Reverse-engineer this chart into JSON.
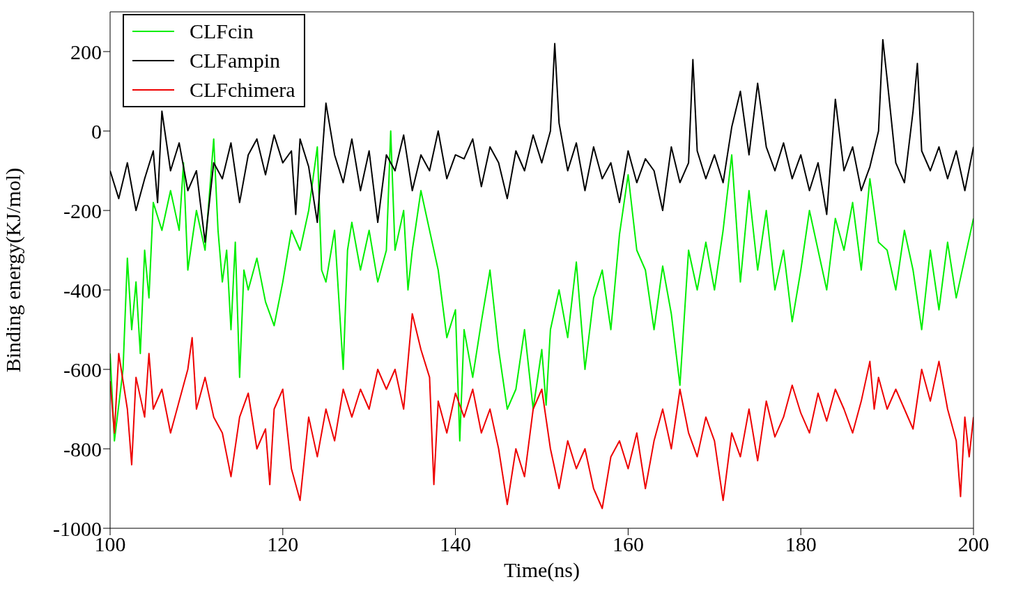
{
  "chart_data": {
    "type": "line",
    "xlabel": "Time(ns)",
    "ylabel": "Binding energy(KJ/mol)",
    "xlim": [
      100,
      200
    ],
    "xticks": [
      100,
      120,
      140,
      160,
      180,
      200
    ],
    "ylim": [
      -1000,
      300
    ],
    "yticks": [
      -1000,
      -800,
      -600,
      -400,
      -200,
      0,
      200
    ],
    "grid": false,
    "legend": "top left",
    "marker": "none",
    "line_style": "solid",
    "series": [
      {
        "name": "CLFcin",
        "color": "#00ee00",
        "x": [
          100,
          100.5,
          101.5,
          102,
          102.5,
          103,
          103.5,
          104,
          104.5,
          105,
          106,
          107,
          108,
          108.5,
          109,
          110,
          111,
          112,
          112.5,
          113,
          113.5,
          114,
          114.5,
          115,
          115.5,
          116,
          117,
          118,
          119,
          120,
          121,
          122,
          123,
          124,
          124.5,
          125,
          126,
          127,
          127.5,
          128,
          129,
          130,
          131,
          132,
          132.5,
          133,
          134,
          134.5,
          135,
          136,
          137,
          138,
          139,
          140,
          140.5,
          141,
          142,
          143,
          144,
          145,
          146,
          147,
          148,
          149,
          150,
          150.5,
          151,
          152,
          153,
          154,
          155,
          156,
          157,
          158,
          159,
          160,
          161,
          162,
          163,
          164,
          165,
          166,
          167,
          168,
          169,
          170,
          171,
          172,
          173,
          174,
          175,
          176,
          177,
          178,
          179,
          180,
          181,
          182,
          183,
          184,
          185,
          186,
          187,
          188,
          189,
          190,
          191,
          192,
          193,
          194,
          195,
          196,
          197,
          198,
          199,
          200
        ],
        "values": [
          -560,
          -780,
          -600,
          -320,
          -500,
          -380,
          -560,
          -300,
          -420,
          -180,
          -250,
          -150,
          -250,
          -80,
          -350,
          -200,
          -300,
          -20,
          -250,
          -380,
          -300,
          -500,
          -280,
          -620,
          -350,
          -400,
          -320,
          -430,
          -490,
          -380,
          -250,
          -300,
          -200,
          -40,
          -350,
          -380,
          -250,
          -600,
          -300,
          -230,
          -350,
          -250,
          -380,
          -300,
          0,
          -300,
          -200,
          -400,
          -300,
          -150,
          -250,
          -350,
          -520,
          -450,
          -780,
          -500,
          -620,
          -480,
          -350,
          -550,
          -700,
          -650,
          -500,
          -700,
          -550,
          -690,
          -500,
          -400,
          -520,
          -330,
          -600,
          -420,
          -350,
          -500,
          -260,
          -110,
          -300,
          -350,
          -500,
          -340,
          -460,
          -640,
          -300,
          -400,
          -280,
          -400,
          -250,
          -60,
          -380,
          -150,
          -350,
          -200,
          -400,
          -300,
          -480,
          -350,
          -200,
          -300,
          -400,
          -220,
          -300,
          -180,
          -350,
          -120,
          -280,
          -300,
          -400,
          -250,
          -350,
          -500,
          -300,
          -450,
          -280,
          -420,
          -320,
          -220
        ]
      },
      {
        "name": "CLFampin",
        "color": "#000000",
        "x": [
          100,
          101,
          102,
          103,
          104,
          105,
          105.5,
          106,
          107,
          108,
          109,
          110,
          111,
          112,
          113,
          114,
          115,
          116,
          117,
          118,
          119,
          120,
          121,
          121.5,
          122,
          123,
          124,
          125,
          126,
          127,
          128,
          129,
          130,
          131,
          132,
          133,
          134,
          135,
          136,
          137,
          138,
          139,
          140,
          141,
          142,
          143,
          144,
          145,
          146,
          147,
          148,
          149,
          150,
          151,
          151.5,
          152,
          153,
          154,
          155,
          156,
          157,
          158,
          159,
          160,
          161,
          162,
          163,
          164,
          165,
          166,
          167,
          167.5,
          168,
          169,
          170,
          171,
          172,
          173,
          174,
          175,
          176,
          177,
          178,
          179,
          180,
          181,
          182,
          183,
          184,
          185,
          186,
          187,
          188,
          189,
          189.5,
          190,
          191,
          192,
          193,
          193.5,
          194,
          195,
          196,
          197,
          198,
          199,
          200
        ],
        "values": [
          -100,
          -170,
          -80,
          -200,
          -120,
          -50,
          -180,
          50,
          -100,
          -30,
          -150,
          -100,
          -280,
          -80,
          -120,
          -30,
          -180,
          -60,
          -20,
          -110,
          -10,
          -80,
          -50,
          -210,
          -20,
          -90,
          -230,
          70,
          -60,
          -130,
          -20,
          -150,
          -50,
          -230,
          -60,
          -100,
          -10,
          -150,
          -60,
          -100,
          0,
          -120,
          -60,
          -70,
          -20,
          -140,
          -40,
          -80,
          -170,
          -50,
          -100,
          -10,
          -80,
          0,
          220,
          20,
          -100,
          -30,
          -150,
          -40,
          -120,
          -80,
          -180,
          -50,
          -130,
          -70,
          -100,
          -200,
          -40,
          -130,
          -80,
          180,
          -50,
          -120,
          -60,
          -130,
          10,
          100,
          -60,
          120,
          -40,
          -100,
          -30,
          -120,
          -60,
          -150,
          -80,
          -210,
          80,
          -100,
          -40,
          -150,
          -90,
          0,
          230,
          130,
          -80,
          -130,
          50,
          170,
          -50,
          -100,
          -40,
          -120,
          -50,
          -150,
          -40
        ]
      },
      {
        "name": "CLFchimera",
        "color": "#ee0000",
        "x": [
          100,
          100.5,
          101,
          102,
          102.5,
          103,
          104,
          104.5,
          105,
          106,
          107,
          108,
          109,
          109.5,
          110,
          111,
          112,
          113,
          114,
          115,
          116,
          117,
          118,
          118.5,
          119,
          120,
          121,
          122,
          123,
          124,
          125,
          126,
          127,
          128,
          129,
          130,
          131,
          132,
          133,
          134,
          135,
          136,
          137,
          137.5,
          138,
          139,
          140,
          141,
          142,
          143,
          144,
          145,
          146,
          147,
          148,
          149,
          150,
          151,
          152,
          153,
          154,
          155,
          156,
          157,
          158,
          159,
          160,
          161,
          162,
          163,
          164,
          165,
          166,
          167,
          168,
          169,
          170,
          171,
          172,
          173,
          174,
          175,
          176,
          177,
          178,
          179,
          180,
          181,
          182,
          183,
          184,
          185,
          186,
          187,
          188,
          188.5,
          189,
          190,
          191,
          192,
          193,
          194,
          195,
          196,
          197,
          198,
          198.5,
          199,
          199.5,
          200
        ],
        "values": [
          -630,
          -760,
          -560,
          -700,
          -840,
          -620,
          -720,
          -560,
          -700,
          -650,
          -760,
          -680,
          -600,
          -520,
          -700,
          -620,
          -720,
          -760,
          -870,
          -720,
          -660,
          -800,
          -750,
          -890,
          -700,
          -650,
          -850,
          -930,
          -720,
          -820,
          -700,
          -780,
          -650,
          -720,
          -650,
          -700,
          -600,
          -650,
          -600,
          -700,
          -460,
          -550,
          -620,
          -890,
          -680,
          -760,
          -660,
          -720,
          -650,
          -760,
          -700,
          -800,
          -940,
          -800,
          -870,
          -700,
          -650,
          -800,
          -900,
          -780,
          -850,
          -800,
          -900,
          -950,
          -820,
          -780,
          -850,
          -760,
          -900,
          -780,
          -700,
          -800,
          -650,
          -760,
          -820,
          -720,
          -780,
          -930,
          -760,
          -820,
          -700,
          -830,
          -680,
          -770,
          -720,
          -640,
          -710,
          -760,
          -660,
          -730,
          -650,
          -700,
          -760,
          -680,
          -580,
          -700,
          -620,
          -700,
          -650,
          -700,
          -750,
          -600,
          -680,
          -580,
          -700,
          -780,
          -920,
          -720,
          -820,
          -720
        ]
      }
    ]
  }
}
